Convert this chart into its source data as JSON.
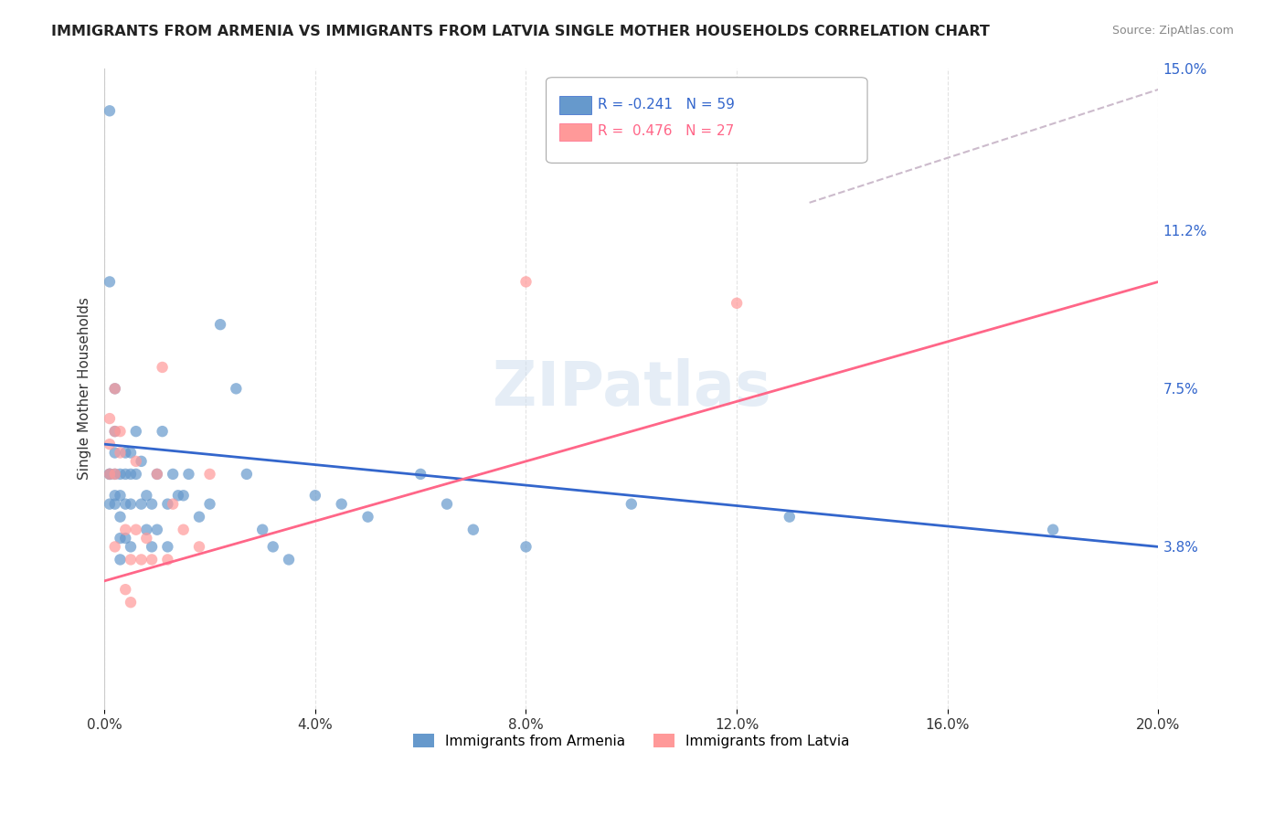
{
  "title": "IMMIGRANTS FROM ARMENIA VS IMMIGRANTS FROM LATVIA SINGLE MOTHER HOUSEHOLDS CORRELATION CHART",
  "source": "Source: ZipAtlas.com",
  "xlabel_bottom": "",
  "ylabel": "Single Mother Households",
  "x_label_bottom_left": "0.0%",
  "x_label_bottom_right": "20.0%",
  "y_ticks_right": [
    "3.8%",
    "7.5%",
    "11.2%",
    "15.0%"
  ],
  "legend_armenia": "Immigrants from Armenia",
  "legend_latvia": "Immigrants from Latvia",
  "legend_R_armenia": "R = -0.241",
  "legend_N_armenia": "N = 59",
  "legend_R_latvia": "R =  0.476",
  "legend_N_latvia": "N = 27",
  "color_armenia": "#6699CC",
  "color_latvia": "#FF9999",
  "line_color_armenia": "#3366CC",
  "line_color_latvia": "#FF6688",
  "line_color_dashed": "#CCBBCC",
  "background_color": "#FFFFFF",
  "grid_color": "#DDDDDD",
  "xlim": [
    0.0,
    0.2
  ],
  "ylim": [
    0.0,
    0.15
  ],
  "armenia_scatter_x": [
    0.001,
    0.001,
    0.001,
    0.001,
    0.001,
    0.002,
    0.002,
    0.002,
    0.002,
    0.002,
    0.002,
    0.003,
    0.003,
    0.003,
    0.003,
    0.003,
    0.004,
    0.004,
    0.004,
    0.004,
    0.005,
    0.005,
    0.005,
    0.005,
    0.006,
    0.006,
    0.007,
    0.007,
    0.008,
    0.008,
    0.009,
    0.009,
    0.01,
    0.01,
    0.011,
    0.012,
    0.012,
    0.013,
    0.014,
    0.015,
    0.016,
    0.018,
    0.02,
    0.022,
    0.025,
    0.027,
    0.03,
    0.032,
    0.035,
    0.04,
    0.045,
    0.05,
    0.06,
    0.065,
    0.07,
    0.08,
    0.1,
    0.13,
    0.18
  ],
  "armenia_scatter_y": [
    0.14,
    0.1,
    0.055,
    0.055,
    0.048,
    0.075,
    0.065,
    0.06,
    0.055,
    0.05,
    0.048,
    0.055,
    0.05,
    0.045,
    0.04,
    0.035,
    0.06,
    0.055,
    0.048,
    0.04,
    0.06,
    0.055,
    0.048,
    0.038,
    0.065,
    0.055,
    0.058,
    0.048,
    0.05,
    0.042,
    0.048,
    0.038,
    0.055,
    0.042,
    0.065,
    0.048,
    0.038,
    0.055,
    0.05,
    0.05,
    0.055,
    0.045,
    0.048,
    0.09,
    0.075,
    0.055,
    0.042,
    0.038,
    0.035,
    0.05,
    0.048,
    0.045,
    0.055,
    0.048,
    0.042,
    0.038,
    0.048,
    0.045,
    0.042
  ],
  "latvia_scatter_x": [
    0.001,
    0.001,
    0.001,
    0.002,
    0.002,
    0.002,
    0.002,
    0.003,
    0.003,
    0.004,
    0.004,
    0.005,
    0.005,
    0.006,
    0.006,
    0.007,
    0.008,
    0.009,
    0.01,
    0.011,
    0.012,
    0.013,
    0.015,
    0.018,
    0.02,
    0.08,
    0.12
  ],
  "latvia_scatter_y": [
    0.068,
    0.062,
    0.055,
    0.075,
    0.065,
    0.055,
    0.038,
    0.065,
    0.06,
    0.042,
    0.028,
    0.035,
    0.025,
    0.058,
    0.042,
    0.035,
    0.04,
    0.035,
    0.055,
    0.08,
    0.035,
    0.048,
    0.042,
    0.038,
    0.055,
    0.1,
    0.095
  ]
}
